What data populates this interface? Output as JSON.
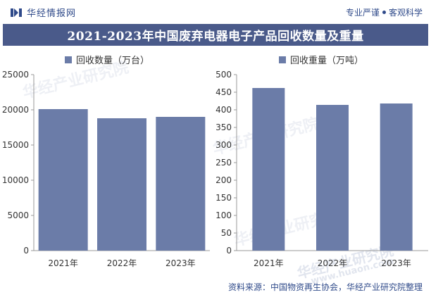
{
  "header": {
    "brand": "华经情报网",
    "slogan_left": "专业严谨",
    "slogan_right": "客观科学"
  },
  "title": "2021-2023年中国废弃电器电子产品回收数量及重量",
  "footer": "资料来源：中国物资再生协会，华经产业研究院整理",
  "watermark_text": "华经产业研究院",
  "watermark_url": "www.huaon.com",
  "colors": {
    "bar": "#6b7ca8",
    "title_bg": "#4a5a8a",
    "accent": "#2f4a8a"
  },
  "chart_data": [
    {
      "type": "bar",
      "legend": "回收数量（万台）",
      "categories": [
        "2021年",
        "2022年",
        "2023年"
      ],
      "values": [
        20100,
        18800,
        19000
      ],
      "yticks": [
        "0",
        "5000",
        "10000",
        "15000",
        "20000",
        "25000"
      ],
      "ylim": [
        0,
        25000
      ]
    },
    {
      "type": "bar",
      "legend": "回收重量（万吨）",
      "categories": [
        "2021年",
        "2022年",
        "2023年"
      ],
      "values": [
        462,
        414,
        418
      ],
      "yticks": [
        "0",
        "50",
        "100",
        "150",
        "200",
        "250",
        "300",
        "350",
        "400",
        "450",
        "500"
      ],
      "ylim": [
        0,
        500
      ]
    }
  ]
}
